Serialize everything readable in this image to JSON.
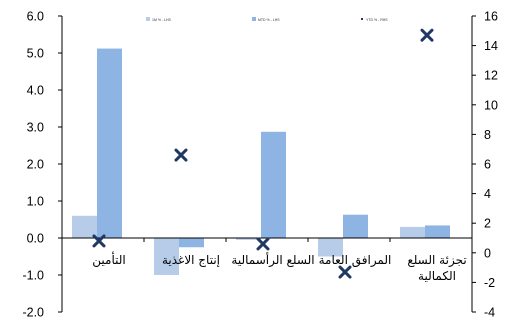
{
  "chart_data": {
    "type": "bar",
    "categories": [
      "التأمين",
      "إنتاج الاغذية",
      "السلع الرأسمالية",
      "المرافق العامة",
      "تجزئة السلع الكمالية"
    ],
    "series": [
      {
        "name": "1M % - LHS",
        "kind": "bar",
        "axis": "left",
        "color": "#b7cce8",
        "values": [
          0.6,
          -1.0,
          -0.05,
          -0.5,
          0.3
        ]
      },
      {
        "name": "MTD % - LHS",
        "kind": "bar",
        "axis": "left",
        "color": "#8eb4e3",
        "values": [
          5.12,
          -0.25,
          2.87,
          0.63,
          0.34
        ]
      },
      {
        "name": "YTD % - RHS",
        "kind": "marker",
        "axis": "right",
        "color": "#1f3864",
        "values": [
          0.8,
          6.6,
          0.6,
          -1.3,
          14.7
        ]
      }
    ],
    "y_left": {
      "min": -2,
      "max": 6,
      "step": 1,
      "tick_labels": [
        "-2.0",
        "-1.0",
        "0.0",
        "1.0",
        "2.0",
        "3.0",
        "4.0",
        "5.0",
        "6.0"
      ]
    },
    "y_right": {
      "min": -4,
      "max": 16,
      "step": 2,
      "tick_labels": [
        "-4",
        "-2",
        "0",
        "2",
        "4",
        "6",
        "8",
        "10",
        "12",
        "14",
        "16"
      ]
    },
    "legend": {
      "position": "top"
    },
    "grid": false
  }
}
